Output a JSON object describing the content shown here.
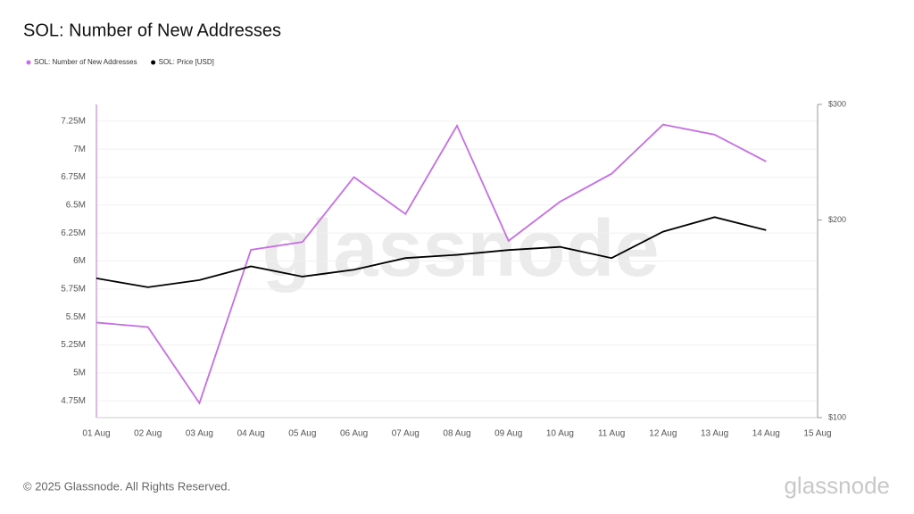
{
  "chart_data": {
    "type": "line",
    "title": "SOL: Number of New Addresses",
    "categories": [
      "01 Aug",
      "02 Aug",
      "03 Aug",
      "04 Aug",
      "05 Aug",
      "06 Aug",
      "07 Aug",
      "08 Aug",
      "09 Aug",
      "10 Aug",
      "11 Aug",
      "12 Aug",
      "13 Aug",
      "14 Aug",
      "15 Aug"
    ],
    "series": [
      {
        "name": "SOL: Number of New Addresses",
        "color": "#c76ee6",
        "values": [
          5450000,
          5410000,
          4730000,
          6100000,
          6170000,
          6750000,
          6420000,
          7210000,
          6180000,
          6530000,
          6780000,
          7220000,
          7130000,
          6890000,
          null
        ]
      },
      {
        "name": "SOL: Price [USD]",
        "color": "#000000",
        "axis": "y2",
        "values": [
          163,
          158,
          162,
          170,
          164,
          168,
          175,
          177,
          180,
          182,
          175,
          192,
          202,
          193,
          null
        ]
      }
    ],
    "ylim": [
      4600000,
      7400000
    ],
    "yticks": [
      {
        "value": 4750000,
        "label": "4.75M"
      },
      {
        "value": 5000000,
        "label": "5M"
      },
      {
        "value": 5250000,
        "label": "5.25M"
      },
      {
        "value": 5500000,
        "label": "5.5M"
      },
      {
        "value": 5750000,
        "label": "5.75M"
      },
      {
        "value": 6000000,
        "label": "6M"
      },
      {
        "value": 6250000,
        "label": "6.25M"
      },
      {
        "value": 6500000,
        "label": "6.5M"
      },
      {
        "value": 6750000,
        "label": "6.75M"
      },
      {
        "value": 7000000,
        "label": "7M"
      },
      {
        "value": 7250000,
        "label": "7.25M"
      }
    ],
    "y2lim": [
      100,
      300
    ],
    "y2ticks": [
      {
        "value": 100,
        "label": "$100"
      },
      {
        "value": 200,
        "label": "$200"
      },
      {
        "value": 300,
        "label": "$300"
      }
    ],
    "y2log": true,
    "grid": true,
    "watermark": "glassnode",
    "footer": "© 2025 Glassnode. All Rights Reserved.",
    "logo": "glassnode"
  }
}
